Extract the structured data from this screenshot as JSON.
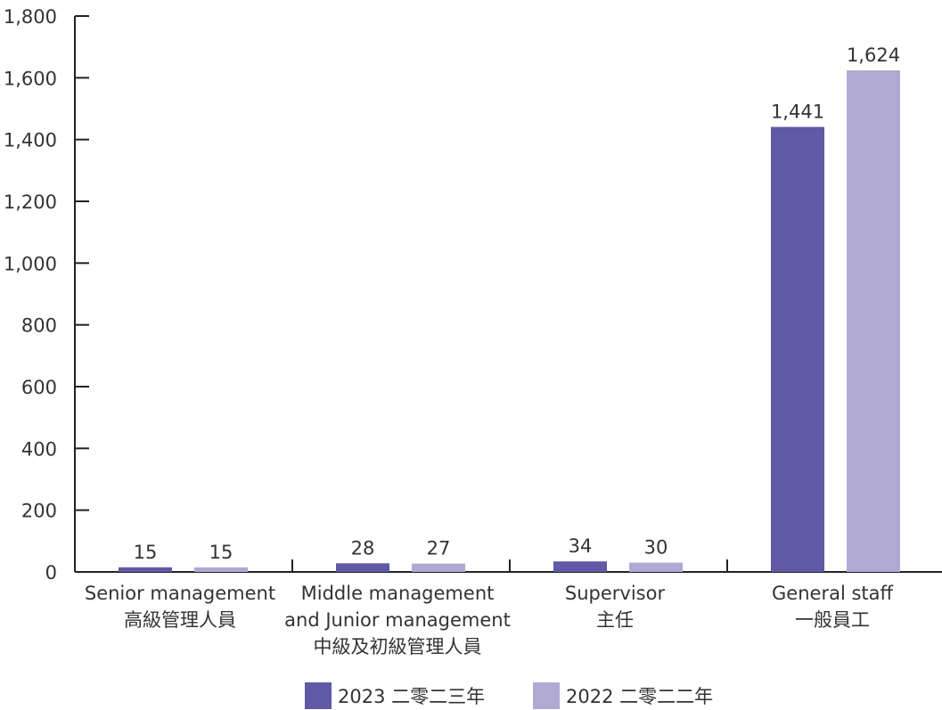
{
  "chart_data": {
    "type": "bar",
    "categories": [
      [
        "Senior management",
        "高級管理人員"
      ],
      [
        "Middle management",
        "and Junior management",
        "中級及初級管理人員"
      ],
      [
        "Supervisor",
        "主任"
      ],
      [
        "General staff",
        "一般員工"
      ]
    ],
    "series": [
      {
        "name": "2023 二零二三年",
        "values": [
          15,
          28,
          34,
          1441
        ],
        "color": "#5f59a6"
      },
      {
        "name": "2022 二零二二年",
        "values": [
          15,
          27,
          30,
          1624
        ],
        "color": "#b0a9d4"
      }
    ],
    "ylim": [
      0,
      1800
    ],
    "y_ticks": [
      0,
      200,
      400,
      600,
      800,
      1000,
      1200,
      1400,
      1600,
      1800
    ],
    "y_tick_labels": [
      "0",
      "200",
      "400",
      "600",
      "800",
      "1,000",
      "1,200",
      "1,400",
      "1,600",
      "1,800"
    ],
    "data_labels": [
      [
        "15",
        "28",
        "34",
        "1,441"
      ],
      [
        "15",
        "27",
        "30",
        "1,624"
      ]
    ],
    "grid": false,
    "legend_position": "bottom-center",
    "axis_color": "#222222"
  }
}
